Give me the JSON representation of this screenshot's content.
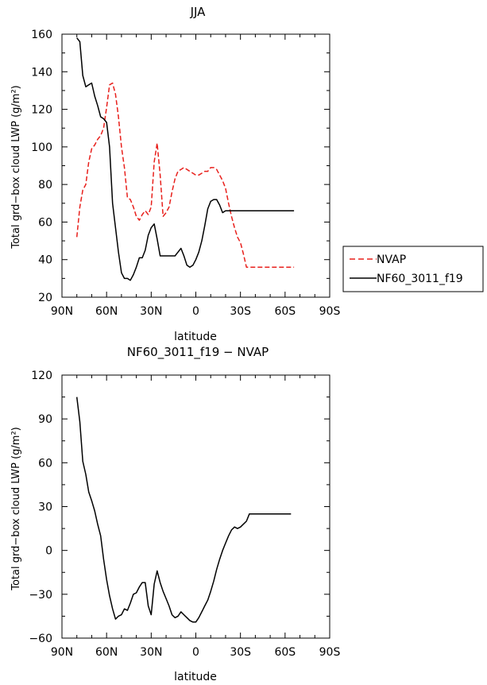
{
  "chart_data": [
    {
      "type": "line",
      "title": "JJA",
      "xlabel": "latitude",
      "ylabel": "Total grd−box cloud LWP (g/m²)",
      "xlim": [
        -90,
        90
      ],
      "ylim": [
        20,
        160
      ],
      "x_ticks": [
        -90,
        -60,
        -30,
        0,
        30,
        60,
        90
      ],
      "x_tick_labels": [
        "90N",
        "60N",
        "30N",
        "0",
        "30S",
        "60S",
        "90S"
      ],
      "y_ticks": [
        20,
        40,
        60,
        80,
        100,
        120,
        140,
        160
      ],
      "y_tick_labels": [
        "20",
        "40",
        "60",
        "80",
        "100",
        "120",
        "140",
        "160"
      ],
      "legend": "outside-right",
      "series": [
        {
          "name": "NVAP",
          "color": "#e8201c",
          "dash": "dashed",
          "x": [
            -80,
            -78,
            -76,
            -74,
            -72,
            -70,
            -68,
            -66,
            -64,
            -62,
            -60,
            -58,
            -56,
            -54,
            -52,
            -50,
            -48,
            -46,
            -44,
            -42,
            -40,
            -38,
            -36,
            -34,
            -32,
            -30,
            -28,
            -26,
            -24,
            -22,
            -20,
            -18,
            -16,
            -14,
            -12,
            -10,
            -8,
            -6,
            -4,
            -2,
            0,
            2,
            4,
            6,
            8,
            10,
            12,
            14,
            16,
            18,
            20,
            22,
            24,
            26,
            28,
            30,
            32,
            34,
            36,
            38,
            40,
            42,
            44,
            46,
            48,
            50,
            52,
            54,
            56,
            58,
            60,
            62,
            64,
            66
          ],
          "values": [
            52,
            68,
            77,
            80,
            92,
            99,
            101,
            104,
            106,
            110,
            121,
            133,
            134,
            128,
            116,
            100,
            89,
            73,
            72,
            68,
            63,
            61,
            64,
            66,
            64,
            68,
            92,
            102,
            85,
            63,
            65,
            68,
            76,
            83,
            87,
            88,
            89,
            88,
            87,
            86,
            85,
            85,
            86,
            87,
            87,
            89,
            89,
            88,
            85,
            82,
            78,
            70,
            63,
            57,
            52,
            49,
            43,
            36,
            36,
            36,
            36,
            36,
            36,
            36,
            36,
            36,
            36,
            36,
            36,
            36,
            36,
            36,
            36,
            36
          ]
        },
        {
          "name": "NF60_3011_f19",
          "color": "#000000",
          "dash": "solid",
          "x": [
            -80,
            -78,
            -76,
            -74,
            -72,
            -70,
            -68,
            -66,
            -64,
            -62,
            -60,
            -58,
            -56,
            -54,
            -52,
            -50,
            -48,
            -46,
            -44,
            -42,
            -40,
            -38,
            -36,
            -34,
            -32,
            -30,
            -28,
            -26,
            -24,
            -22,
            -20,
            -18,
            -16,
            -14,
            -12,
            -10,
            -8,
            -6,
            -4,
            -2,
            0,
            2,
            4,
            6,
            8,
            10,
            12,
            14,
            16,
            18,
            20,
            22,
            24,
            26,
            28,
            30,
            32,
            34,
            36,
            38,
            40,
            42,
            44,
            46,
            48,
            50,
            52,
            54,
            56,
            58,
            60,
            62,
            64,
            66
          ],
          "values": [
            158,
            156,
            138,
            132,
            133,
            134,
            127,
            122,
            116,
            115,
            113,
            100,
            70,
            57,
            44,
            33,
            30,
            30,
            29,
            32,
            36,
            41,
            41,
            45,
            53,
            57,
            59,
            51,
            42,
            42,
            42,
            42,
            42,
            42,
            44,
            46,
            42,
            37,
            36,
            37,
            40,
            44,
            50,
            58,
            67,
            71,
            72,
            72,
            69,
            65,
            66,
            66,
            66,
            66,
            66,
            66,
            66,
            66,
            66,
            66,
            66,
            66,
            66,
            66,
            66,
            66,
            66,
            66,
            66,
            66,
            66,
            66,
            66,
            66
          ]
        }
      ]
    },
    {
      "type": "line",
      "title": "NF60_3011_f19 − NVAP",
      "xlabel": "latitude",
      "ylabel": "Total grd−box cloud LWP (g/m²)",
      "xlim": [
        -90,
        90
      ],
      "ylim": [
        -60,
        120
      ],
      "x_ticks": [
        -90,
        -60,
        -30,
        0,
        30,
        60,
        90
      ],
      "x_tick_labels": [
        "90N",
        "60N",
        "30N",
        "0",
        "30S",
        "60S",
        "90S"
      ],
      "y_ticks": [
        -60,
        -30,
        0,
        30,
        60,
        90,
        120
      ],
      "y_tick_labels": [
        "−60",
        "−30",
        "0",
        "30",
        "60",
        "90",
        "120"
      ],
      "series": [
        {
          "color": "#000000",
          "dash": "solid",
          "x": [
            -80,
            -78,
            -76,
            -74,
            -72,
            -70,
            -68,
            -66,
            -64,
            -62,
            -60,
            -58,
            -56,
            -54,
            -52,
            -50,
            -48,
            -46,
            -44,
            -42,
            -40,
            -38,
            -36,
            -34,
            -32,
            -30,
            -28,
            -26,
            -24,
            -22,
            -20,
            -18,
            -16,
            -14,
            -12,
            -10,
            -8,
            -6,
            -4,
            -2,
            0,
            2,
            4,
            6,
            8,
            10,
            12,
            14,
            16,
            18,
            20,
            22,
            24,
            26,
            28,
            30,
            32,
            34,
            36,
            38,
            40,
            42,
            44,
            46,
            48,
            50,
            52,
            54,
            56,
            58,
            60,
            62,
            64
          ],
          "values": [
            105,
            88,
            61,
            52,
            40,
            34,
            27,
            18,
            10,
            -6,
            -20,
            -31,
            -40,
            -47,
            -45,
            -44,
            -40,
            -41,
            -36,
            -30,
            -29,
            -25,
            -22,
            -22,
            -38,
            -44,
            -23,
            -14,
            -22,
            -28,
            -33,
            -38,
            -44,
            -46,
            -45,
            -42,
            -44,
            -46,
            -48,
            -49,
            -49,
            -46,
            -42,
            -38,
            -34,
            -28,
            -21,
            -13,
            -6,
            0,
            5,
            10,
            14,
            16,
            15,
            16,
            18,
            20,
            25,
            25,
            25,
            25,
            25,
            25,
            25,
            25,
            25,
            25,
            25,
            25,
            25,
            25,
            25
          ]
        }
      ]
    }
  ]
}
